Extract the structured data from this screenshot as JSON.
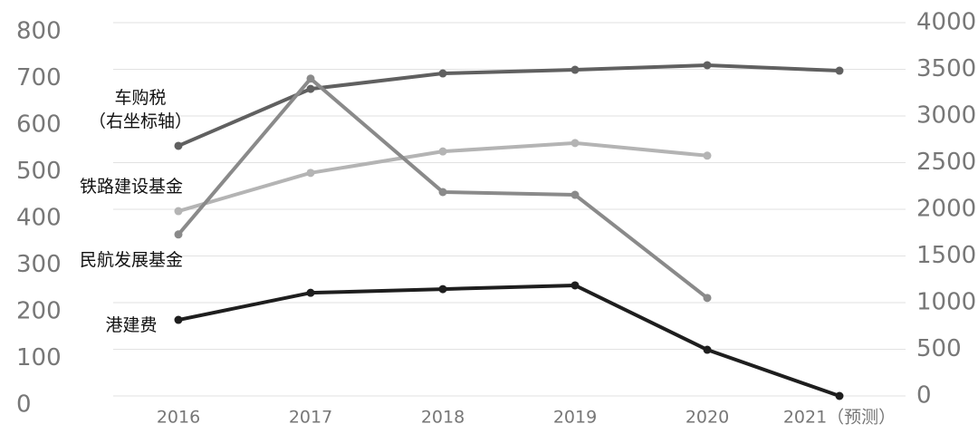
{
  "chart_data": {
    "type": "line",
    "categories": [
      "2016",
      "2017",
      "2018",
      "2019",
      "2020",
      "2021（预测）"
    ],
    "ylim": [
      0,
      800
    ],
    "yticks": [
      0,
      100,
      200,
      300,
      400,
      500,
      600,
      700,
      800
    ],
    "y2lim": [
      0,
      4000
    ],
    "y2ticks": [
      0,
      500,
      1000,
      1500,
      2000,
      2500,
      3000,
      3500,
      4000
    ],
    "grid": true,
    "series": [
      {
        "name": "车购税\n（右坐标轴）",
        "color": "#606060",
        "axis": "y2",
        "values": [
          2680,
          3290,
          3456,
          3495,
          3544,
          3485
        ]
      },
      {
        "name": "铁路建设基金",
        "color": "#b4b4b4",
        "values": [
          396,
          478,
          524,
          542,
          515,
          null
        ]
      },
      {
        "name": "民航发展基金",
        "color": "#8a8a8a",
        "values": [
          346,
          680,
          437,
          431,
          210,
          null
        ]
      },
      {
        "name": "港建费",
        "color": "#1e1e1e",
        "values": [
          163,
          221,
          229,
          237,
          99,
          0
        ]
      }
    ]
  }
}
